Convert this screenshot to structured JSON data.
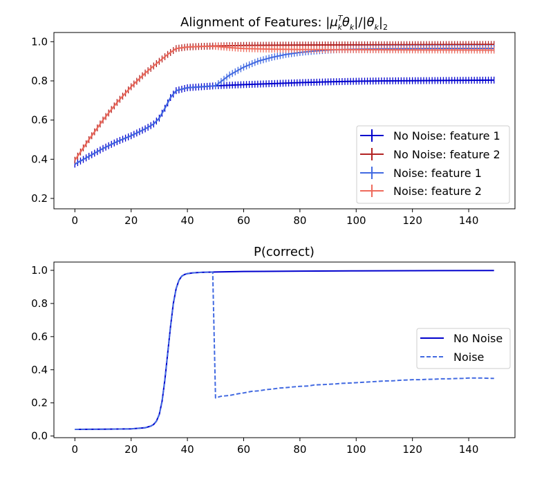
{
  "chart_data": [
    {
      "type": "line",
      "title_prefix": "Alignment of Features: ",
      "title_math": {
        "abs_open": "|",
        "mu": "μ",
        "sup": "T",
        "sub_k": "k",
        "theta": "θ",
        "abs_close": "|/|",
        "norm_sub": "2"
      },
      "xlim": [
        -7.45,
        156.45
      ],
      "ylim": [
        0.147,
        1.047
      ],
      "xticks": [
        0,
        20,
        40,
        60,
        80,
        100,
        120,
        140
      ],
      "yticks": [
        0.2,
        0.4,
        0.6,
        0.8,
        1.0
      ],
      "ytick_labels": [
        "0.2",
        "0.4",
        "0.6",
        "0.8",
        "1.0"
      ],
      "errorbars": true,
      "legend": {
        "placement": "lower-right"
      },
      "series": [
        {
          "name": "No Noise: feature 1",
          "color": "#0000cd",
          "x": [
            0,
            5,
            10,
            15,
            20,
            25,
            28,
            30,
            32,
            34,
            36,
            40,
            45,
            50,
            55,
            60,
            70,
            80,
            90,
            100,
            110,
            120,
            130,
            140,
            149
          ],
          "y": [
            0.375,
            0.415,
            0.455,
            0.49,
            0.52,
            0.555,
            0.58,
            0.61,
            0.66,
            0.715,
            0.75,
            0.765,
            0.77,
            0.775,
            0.778,
            0.781,
            0.786,
            0.791,
            0.795,
            0.798,
            0.8,
            0.801,
            0.802,
            0.803,
            0.804
          ]
        },
        {
          "name": "No Noise: feature 2",
          "color": "#b22222",
          "x": [
            0,
            5,
            10,
            15,
            20,
            25,
            30,
            33,
            36,
            40,
            45,
            50,
            60,
            80,
            100,
            120,
            149
          ],
          "y": [
            0.395,
            0.5,
            0.6,
            0.69,
            0.77,
            0.84,
            0.9,
            0.935,
            0.965,
            0.973,
            0.976,
            0.978,
            0.981,
            0.983,
            0.984,
            0.985,
            0.986
          ]
        },
        {
          "name": "Noise: feature 1",
          "color": "#4169e1",
          "x": [
            0,
            5,
            10,
            15,
            20,
            25,
            28,
            30,
            32,
            34,
            36,
            40,
            45,
            50,
            55,
            60,
            65,
            70,
            75,
            80,
            85,
            90,
            95,
            100,
            110,
            120,
            130,
            140,
            149
          ],
          "y": [
            0.375,
            0.415,
            0.455,
            0.49,
            0.52,
            0.555,
            0.58,
            0.61,
            0.66,
            0.715,
            0.75,
            0.765,
            0.77,
            0.775,
            0.83,
            0.87,
            0.9,
            0.92,
            0.935,
            0.945,
            0.952,
            0.957,
            0.96,
            0.962,
            0.964,
            0.965,
            0.966,
            0.966,
            0.966
          ]
        },
        {
          "name": "Noise: feature 2",
          "color": "#ee6a5b",
          "x": [
            0,
            5,
            10,
            15,
            20,
            25,
            30,
            33,
            36,
            40,
            45,
            50,
            55,
            60,
            70,
            80,
            100,
            120,
            149
          ],
          "y": [
            0.395,
            0.5,
            0.6,
            0.69,
            0.77,
            0.84,
            0.9,
            0.935,
            0.965,
            0.973,
            0.976,
            0.976,
            0.97,
            0.965,
            0.962,
            0.96,
            0.959,
            0.958,
            0.957
          ]
        }
      ]
    },
    {
      "type": "line",
      "title": "P(correct)",
      "xlim": [
        -7.45,
        156.45
      ],
      "ylim": [
        -0.01,
        1.05
      ],
      "xticks": [
        0,
        20,
        40,
        60,
        80,
        100,
        120,
        140
      ],
      "yticks": [
        0.0,
        0.2,
        0.4,
        0.6,
        0.8,
        1.0
      ],
      "ytick_labels": [
        "0.0",
        "0.2",
        "0.4",
        "0.6",
        "0.8",
        "1.0"
      ],
      "legend": {
        "placement": "center-right"
      },
      "series": [
        {
          "name": "No Noise",
          "color": "#0000cd",
          "dash": "solid",
          "x": [
            0,
            10,
            20,
            25,
            27,
            28,
            29,
            30,
            31,
            32,
            33,
            34,
            35,
            36,
            37,
            38,
            39,
            40,
            42,
            45,
            50,
            60,
            80,
            100,
            120,
            149
          ],
          "y": [
            0.04,
            0.041,
            0.043,
            0.05,
            0.06,
            0.07,
            0.09,
            0.13,
            0.21,
            0.34,
            0.5,
            0.66,
            0.8,
            0.89,
            0.94,
            0.965,
            0.975,
            0.98,
            0.985,
            0.988,
            0.99,
            0.993,
            0.995,
            0.997,
            0.998,
            0.999
          ]
        },
        {
          "name": "Noise",
          "color": "#4169e1",
          "dash": "dashed",
          "x": [
            0,
            10,
            20,
            25,
            27,
            28,
            29,
            30,
            31,
            32,
            33,
            34,
            35,
            36,
            37,
            38,
            39,
            40,
            42,
            45,
            49,
            50,
            52,
            55,
            58,
            60,
            63,
            65,
            68,
            70,
            73,
            75,
            78,
            80,
            83,
            85,
            88,
            90,
            93,
            95,
            98,
            100,
            103,
            105,
            108,
            110,
            113,
            115,
            118,
            120,
            123,
            125,
            128,
            130,
            133,
            135,
            138,
            140,
            143,
            145,
            148,
            149
          ],
          "y": [
            0.04,
            0.041,
            0.043,
            0.05,
            0.06,
            0.07,
            0.09,
            0.13,
            0.21,
            0.34,
            0.5,
            0.66,
            0.8,
            0.89,
            0.94,
            0.965,
            0.975,
            0.98,
            0.985,
            0.988,
            0.99,
            0.23,
            0.24,
            0.245,
            0.255,
            0.26,
            0.27,
            0.272,
            0.28,
            0.283,
            0.29,
            0.292,
            0.297,
            0.3,
            0.302,
            0.308,
            0.31,
            0.312,
            0.315,
            0.318,
            0.32,
            0.322,
            0.325,
            0.327,
            0.33,
            0.332,
            0.333,
            0.336,
            0.338,
            0.34,
            0.34,
            0.342,
            0.343,
            0.345,
            0.345,
            0.347,
            0.348,
            0.35,
            0.35,
            0.35,
            0.348,
            0.348
          ]
        }
      ]
    }
  ]
}
